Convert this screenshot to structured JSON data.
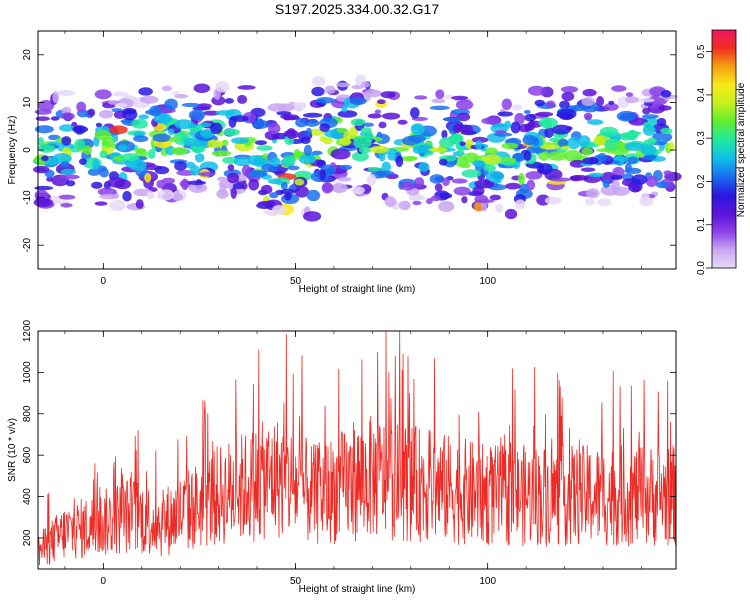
{
  "title": "S197.2025.334.00.32.G17",
  "colors": {
    "snr_line": "#ee2a24",
    "axis": "#000000",
    "colormap": [
      "#e8d8f8",
      "#c9a6f2",
      "#8a40e8",
      "#5a12d8",
      "#2a18e0",
      "#1a70f0",
      "#10c0e8",
      "#20e8a0",
      "#60ee30",
      "#c8f020",
      "#f8e818",
      "#f8a010",
      "#f03020",
      "#f01860"
    ]
  },
  "chart_data": [
    {
      "type": "heatmap",
      "xlabel": "Height of straight line (km)",
      "ylabel": "Frequency (Hz)",
      "xlim": [
        -17,
        149
      ],
      "ylim": [
        -25,
        25
      ],
      "xticks": [
        "0",
        "50",
        "100"
      ],
      "yticks": [
        "20",
        "10",
        "0",
        "-10",
        "-20"
      ],
      "colorbar": {
        "label": "Normalized spectral amplitude",
        "range": [
          0.0,
          0.55
        ],
        "ticks": [
          "0.0",
          "0.1",
          "0.2",
          "0.3",
          "0.4",
          "0.5"
        ]
      },
      "grid": false
    },
    {
      "type": "line",
      "xlabel": "Height of straight line (km)",
      "ylabel": "SNR (10 * v/v)",
      "xlim": [
        -17,
        149
      ],
      "ylim": [
        50,
        1200
      ],
      "xticks": [
        "0",
        "50",
        "100"
      ],
      "yticks": [
        "200",
        "400",
        "600",
        "800",
        "1000",
        "1200"
      ],
      "grid": false,
      "series": [
        {
          "x": [
            -17,
            -10,
            0,
            7,
            15,
            30,
            45,
            55,
            70,
            85,
            100,
            115,
            130,
            149
          ],
          "values": [
            150,
            250,
            300,
            350,
            300,
            450,
            550,
            450,
            550,
            500,
            450,
            450,
            450,
            450
          ]
        }
      ]
    }
  ]
}
